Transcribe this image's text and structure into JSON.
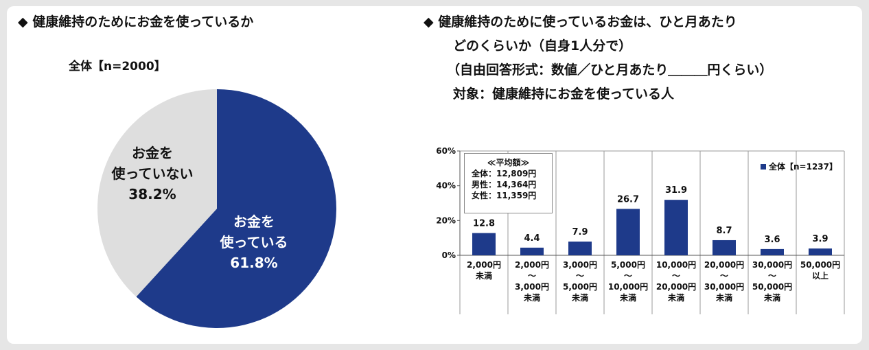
{
  "left": {
    "title": "◆ 健康維持のためにお金を使っているか",
    "sample": "全体【n=2000】"
  },
  "right": {
    "title_lines": [
      "◆ 健康維持のために使っているお金は、ひと月あたり",
      "どのくらいか（自身1人分で）",
      "（自由回答形式：数値／ひと月あたり＿＿＿円くらい）",
      "対象：健康維持にお金を使っている人"
    ],
    "average_box": {
      "title": "≪平均額≫",
      "lines": [
        "全体：12,809円",
        "男性：14,364円",
        "女性：11,359円"
      ]
    },
    "legend": "全体【n=1237】"
  },
  "chart_data": [
    {
      "type": "pie",
      "slices": [
        {
          "label_lines": [
            "お金を",
            "使っている"
          ],
          "value": 61.8,
          "value_label": "61.8%",
          "color": "#1e3a8a",
          "text_color": "#ffffff"
        },
        {
          "label_lines": [
            "お金を",
            "使っていない"
          ],
          "value": 38.2,
          "value_label": "38.2%",
          "color": "#dedede",
          "text_color": "#111111"
        }
      ]
    },
    {
      "type": "bar",
      "ylim": [
        0,
        60
      ],
      "yticks": [
        "0%",
        "20%",
        "40%",
        "60%"
      ],
      "categories": [
        [
          "2,000円",
          "未満"
        ],
        [
          "2,000円",
          "～",
          "3,000円",
          "未満"
        ],
        [
          "3,000円",
          "～",
          "5,000円",
          "未満"
        ],
        [
          "5,000円",
          "～",
          "10,000円",
          "未満"
        ],
        [
          "10,000円",
          "～",
          "20,000円",
          "未満"
        ],
        [
          "20,000円",
          "～",
          "30,000円",
          "未満"
        ],
        [
          "30,000円",
          "～",
          "50,000円",
          "未満"
        ],
        [
          "50,000円",
          "以上"
        ]
      ],
      "values": [
        12.8,
        4.4,
        7.9,
        26.7,
        31.9,
        8.7,
        3.6,
        3.9
      ],
      "value_labels": [
        "12.8",
        "4.4",
        "7.9",
        "26.7",
        "31.9",
        "8.7",
        "3.6",
        "3.9"
      ],
      "color": "#1e3a8a"
    }
  ]
}
